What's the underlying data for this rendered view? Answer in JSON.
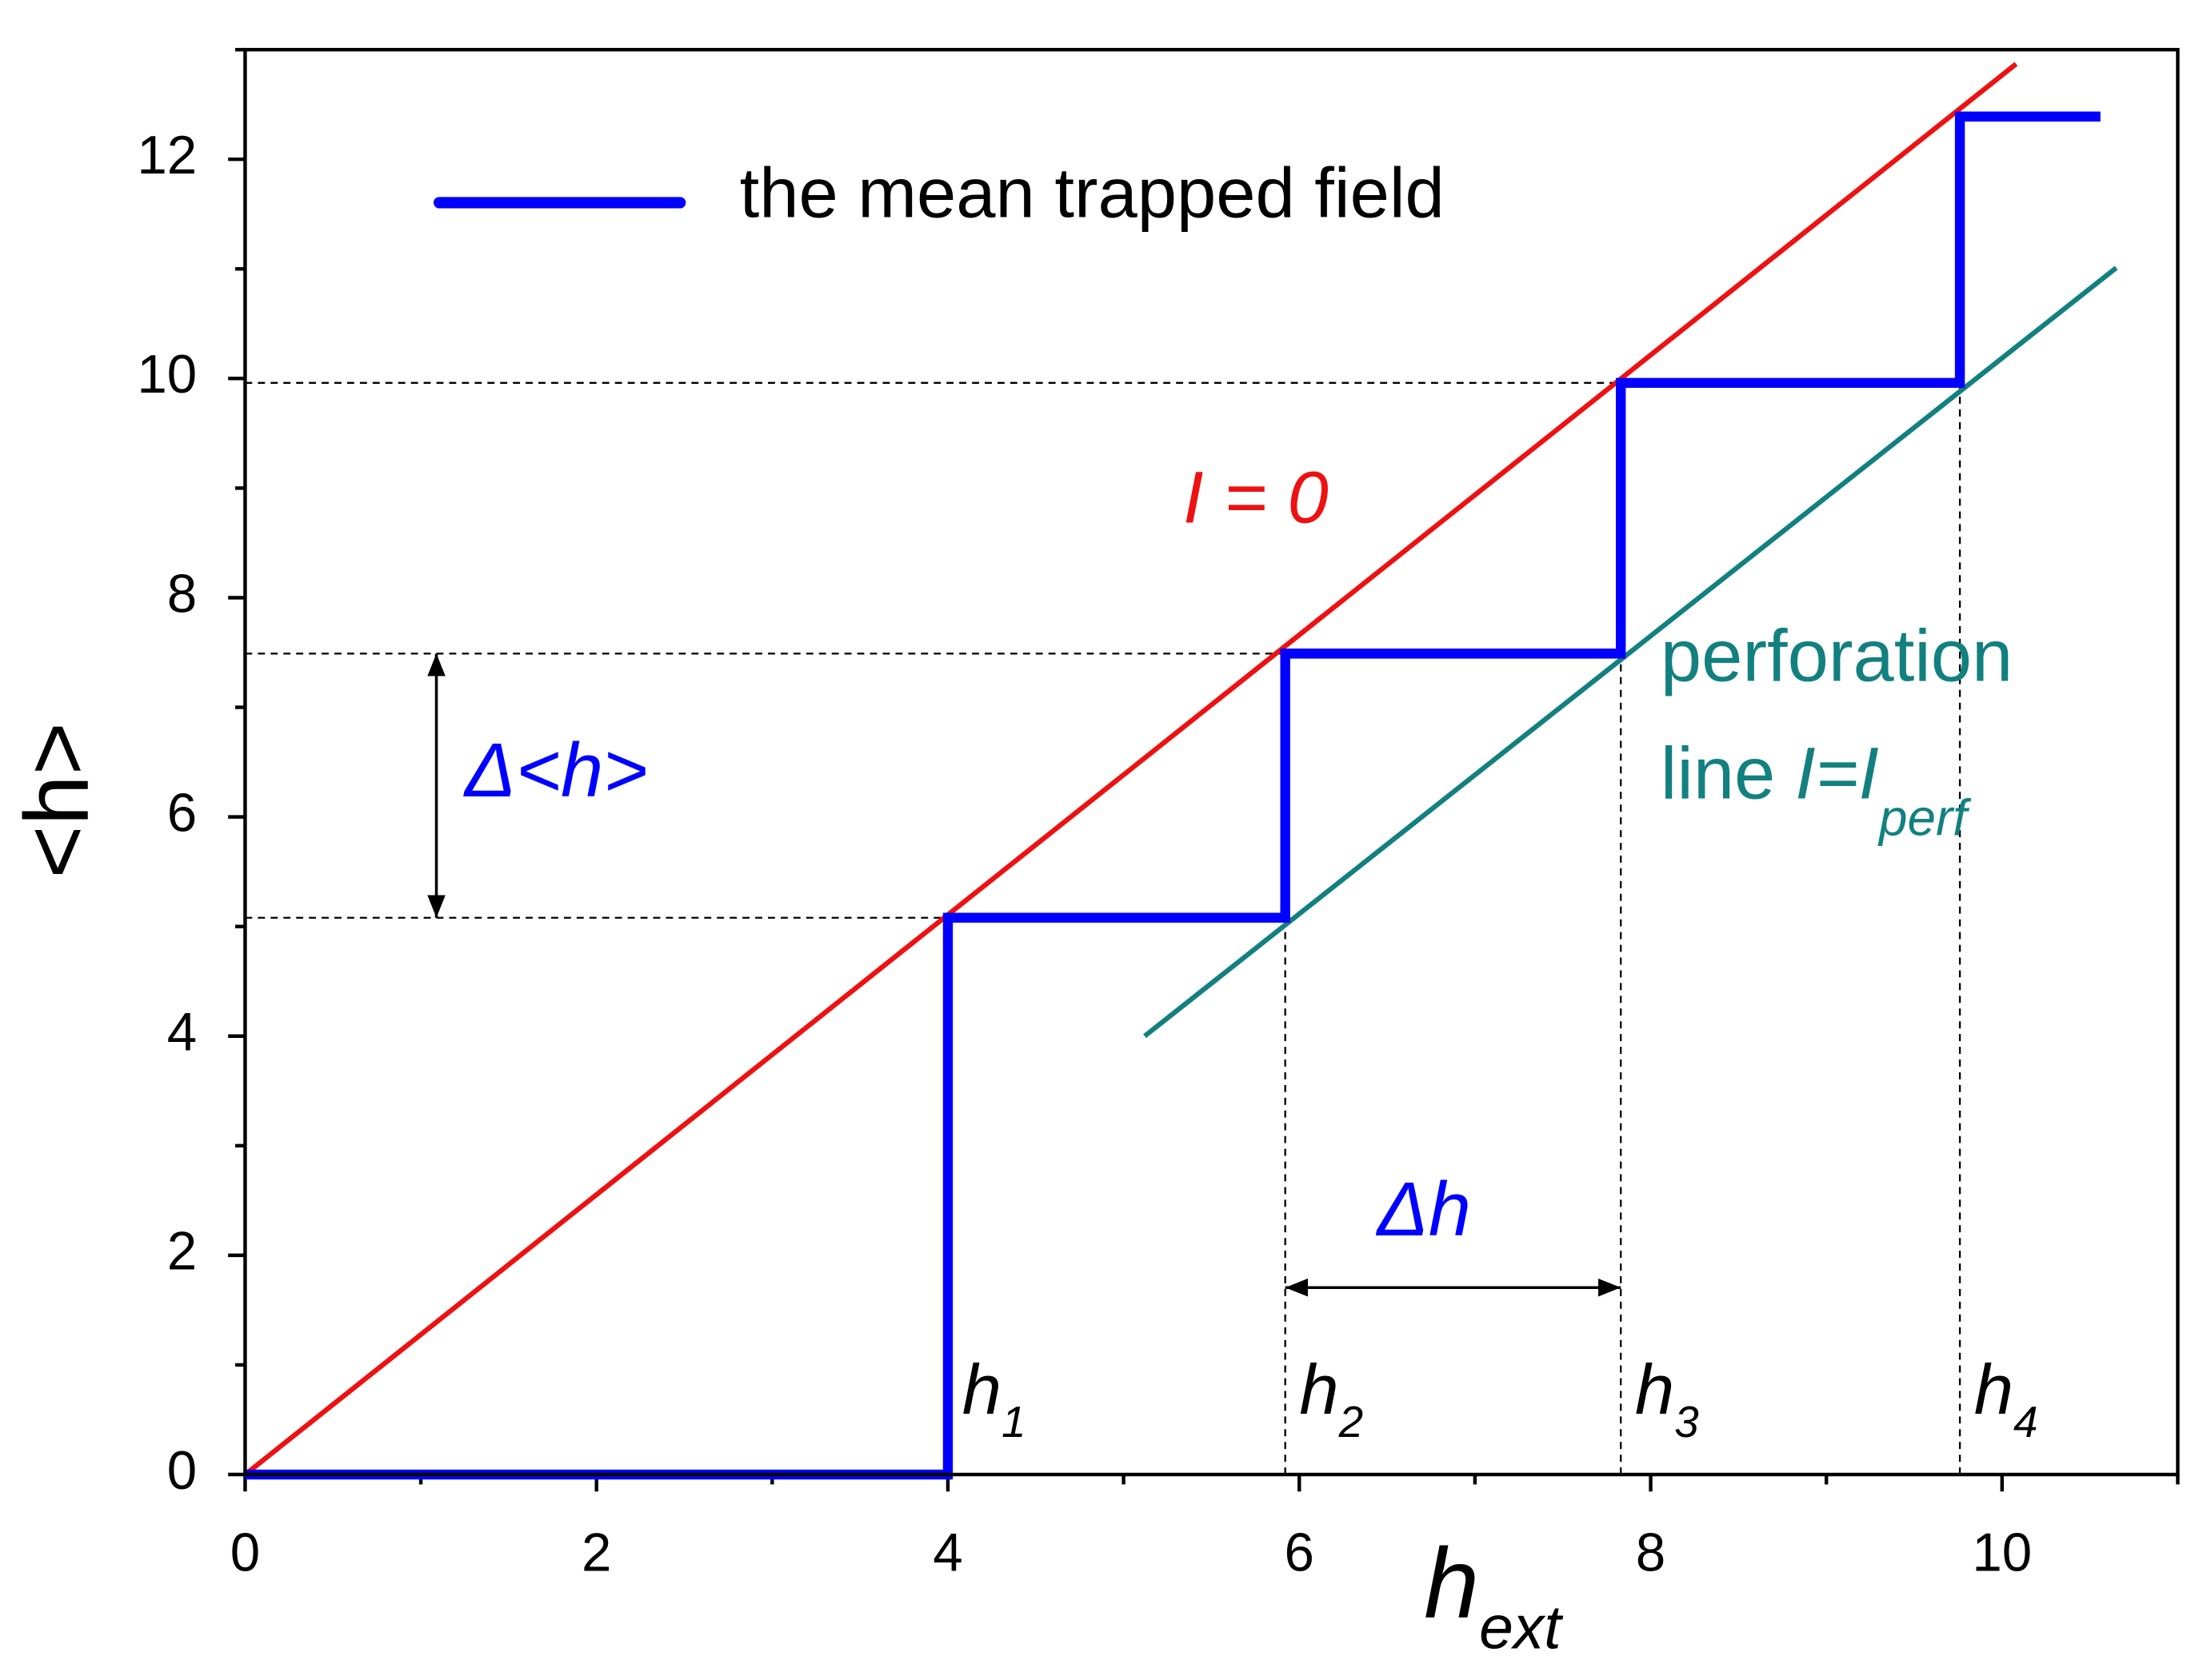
{
  "chart_data": {
    "type": "line",
    "x_label": {
      "text": "h",
      "sub": "ext"
    },
    "y_label": "<h>",
    "xlim": [
      0,
      11
    ],
    "ylim": [
      0,
      13
    ],
    "xticks": [
      0,
      2,
      4,
      6,
      8,
      10
    ],
    "yticks": [
      0,
      2,
      4,
      6,
      8,
      10,
      12
    ],
    "xticks_minor": [
      1,
      3,
      5,
      7,
      9,
      11
    ],
    "yticks_minor": [
      1,
      3,
      5,
      7,
      9,
      11,
      13
    ],
    "series": [
      {
        "name": "the mean trapped field",
        "color": "#0000ff",
        "x": [
          0,
          4,
          4,
          5.92,
          5.92,
          7.83,
          7.83,
          9.76,
          9.76,
          10.56
        ],
        "values": [
          0,
          0,
          5.08,
          5.08,
          7.49,
          7.49,
          9.96,
          9.96,
          12.39,
          12.39
        ]
      },
      {
        "color": "#ee1111",
        "x": [
          0,
          10.08
        ],
        "values": [
          0,
          12.87
        ],
        "label": "I = 0"
      },
      {
        "color": "#138080",
        "x": [
          5.12,
          10.65
        ],
        "values": [
          4.0,
          11.01
        ],
        "label": {
          "lines": [
            "perforation",
            "line"
          ],
          "math": "I=I",
          "sub": "perf"
        }
      }
    ],
    "step_labels": [
      {
        "text": "h",
        "sub": "1"
      },
      {
        "text": "h",
        "sub": "2"
      },
      {
        "text": "h",
        "sub": "3"
      },
      {
        "text": "h",
        "sub": "4"
      }
    ],
    "delta_y_label": "Δ<h>",
    "delta_x_label": "Δh"
  }
}
